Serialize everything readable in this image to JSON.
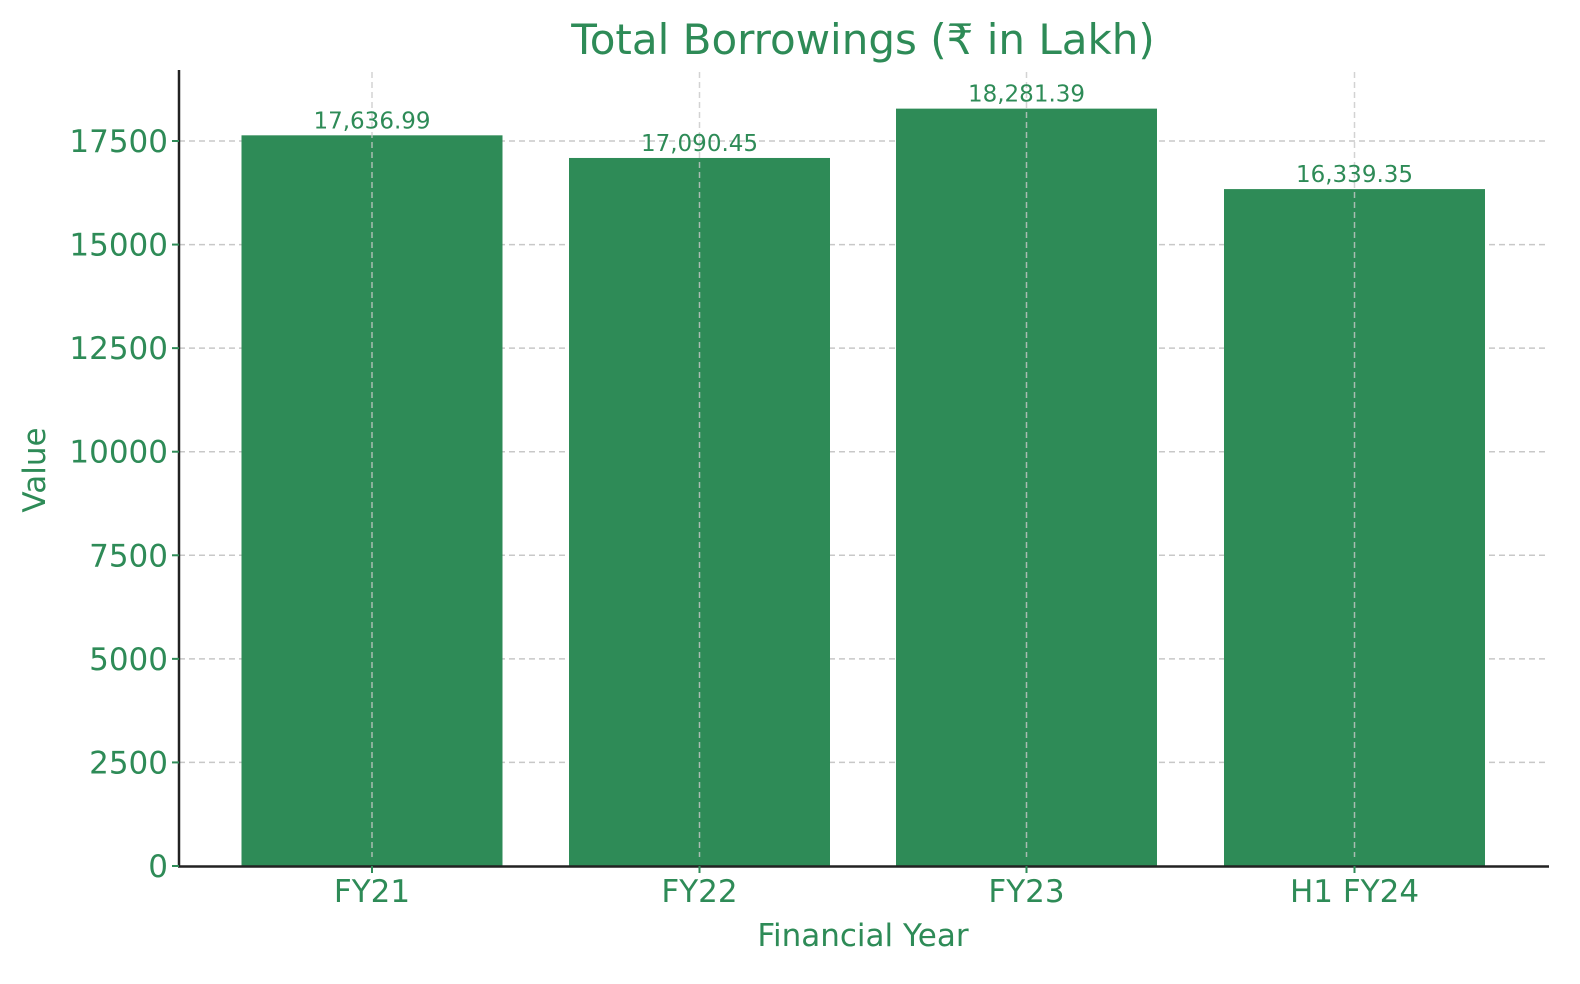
{
  "chart_data": {
    "type": "bar",
    "title": "Total Borrowings (₹ in Lakh)",
    "xlabel": "Financial Year",
    "ylabel": "Value",
    "categories": [
      "FY21",
      "FY22",
      "FY23",
      "H1 FY24"
    ],
    "values": [
      17636.99,
      17090.45,
      18281.39,
      16339.35
    ],
    "value_labels": [
      "17,636.99",
      "17,090.45",
      "18,281.39",
      "16,339.35"
    ],
    "yticks": [
      0,
      2500,
      5000,
      7500,
      10000,
      12500,
      15000,
      17500
    ],
    "ylim": [
      0,
      19200
    ],
    "grid": true,
    "legend": null,
    "colors": {
      "bar": "#2e8b57",
      "text": "#2e8b57",
      "axis": "#222222",
      "grid": "#c8c8c8"
    }
  }
}
